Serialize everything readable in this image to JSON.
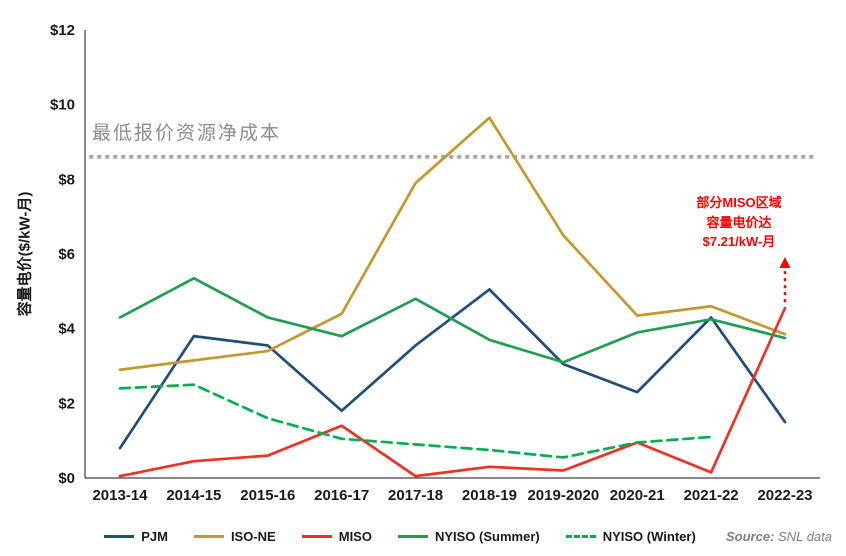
{
  "chart_data": {
    "type": "line",
    "title": "",
    "xlabel": "",
    "ylabel": "容量电价($/kW-月)",
    "ylim": [
      0,
      12
    ],
    "grid": false,
    "legend_position": "bottom",
    "y_ticks": [
      {
        "value": 0,
        "label": "$0"
      },
      {
        "value": 2,
        "label": "$2"
      },
      {
        "value": 4,
        "label": "$4"
      },
      {
        "value": 6,
        "label": "$6"
      },
      {
        "value": 8,
        "label": "$8"
      },
      {
        "value": 10,
        "label": "$10"
      },
      {
        "value": 12,
        "label": "$12"
      }
    ],
    "categories": [
      "2013-14",
      "2014-15",
      "2015-16",
      "2016-17",
      "2017-18",
      "2018-19",
      "2019-2020",
      "2020-21",
      "2021-22",
      "2022-23"
    ],
    "series": [
      {
        "name": "PJM",
        "color": "#1F4E79",
        "dash": false,
        "values": [
          0.8,
          3.8,
          3.55,
          1.8,
          3.55,
          5.05,
          3.05,
          2.3,
          4.3,
          1.5
        ]
      },
      {
        "name": "ISO-NE",
        "color": "#C3992B",
        "dash": false,
        "values": [
          2.9,
          3.15,
          3.4,
          4.4,
          7.9,
          9.65,
          6.5,
          4.35,
          4.6,
          3.85
        ]
      },
      {
        "name": "MISO",
        "color": "#EF3022",
        "dash": false,
        "values": [
          0.05,
          0.45,
          0.6,
          1.4,
          0.05,
          0.3,
          0.2,
          0.95,
          0.15,
          4.55
        ]
      },
      {
        "name": "NYISO (Summer)",
        "color": "#1E9E50",
        "dash": false,
        "values": [
          4.3,
          5.35,
          4.3,
          3.8,
          4.8,
          3.7,
          3.1,
          3.9,
          4.25,
          3.75
        ]
      },
      {
        "name": "NYISO (Winter)",
        "color": "#00AF50",
        "dash": true,
        "values": [
          2.4,
          2.5,
          1.6,
          1.05,
          0.9,
          0.75,
          0.55,
          0.95,
          1.1,
          null
        ]
      }
    ],
    "threshold": {
      "value": 8.6,
      "label": "最低报价资源净成本",
      "color": "#A6A6A6",
      "label_color": "#8C8C8C"
    },
    "annotation": {
      "lines": [
        "部分MISO区域",
        "容量电价达",
        "$7.21/kW-月"
      ],
      "color": "#FF0000",
      "target_series": "MISO",
      "target_category": "2022-23"
    }
  },
  "source": {
    "label": "Source:",
    "text": "SNL data"
  }
}
